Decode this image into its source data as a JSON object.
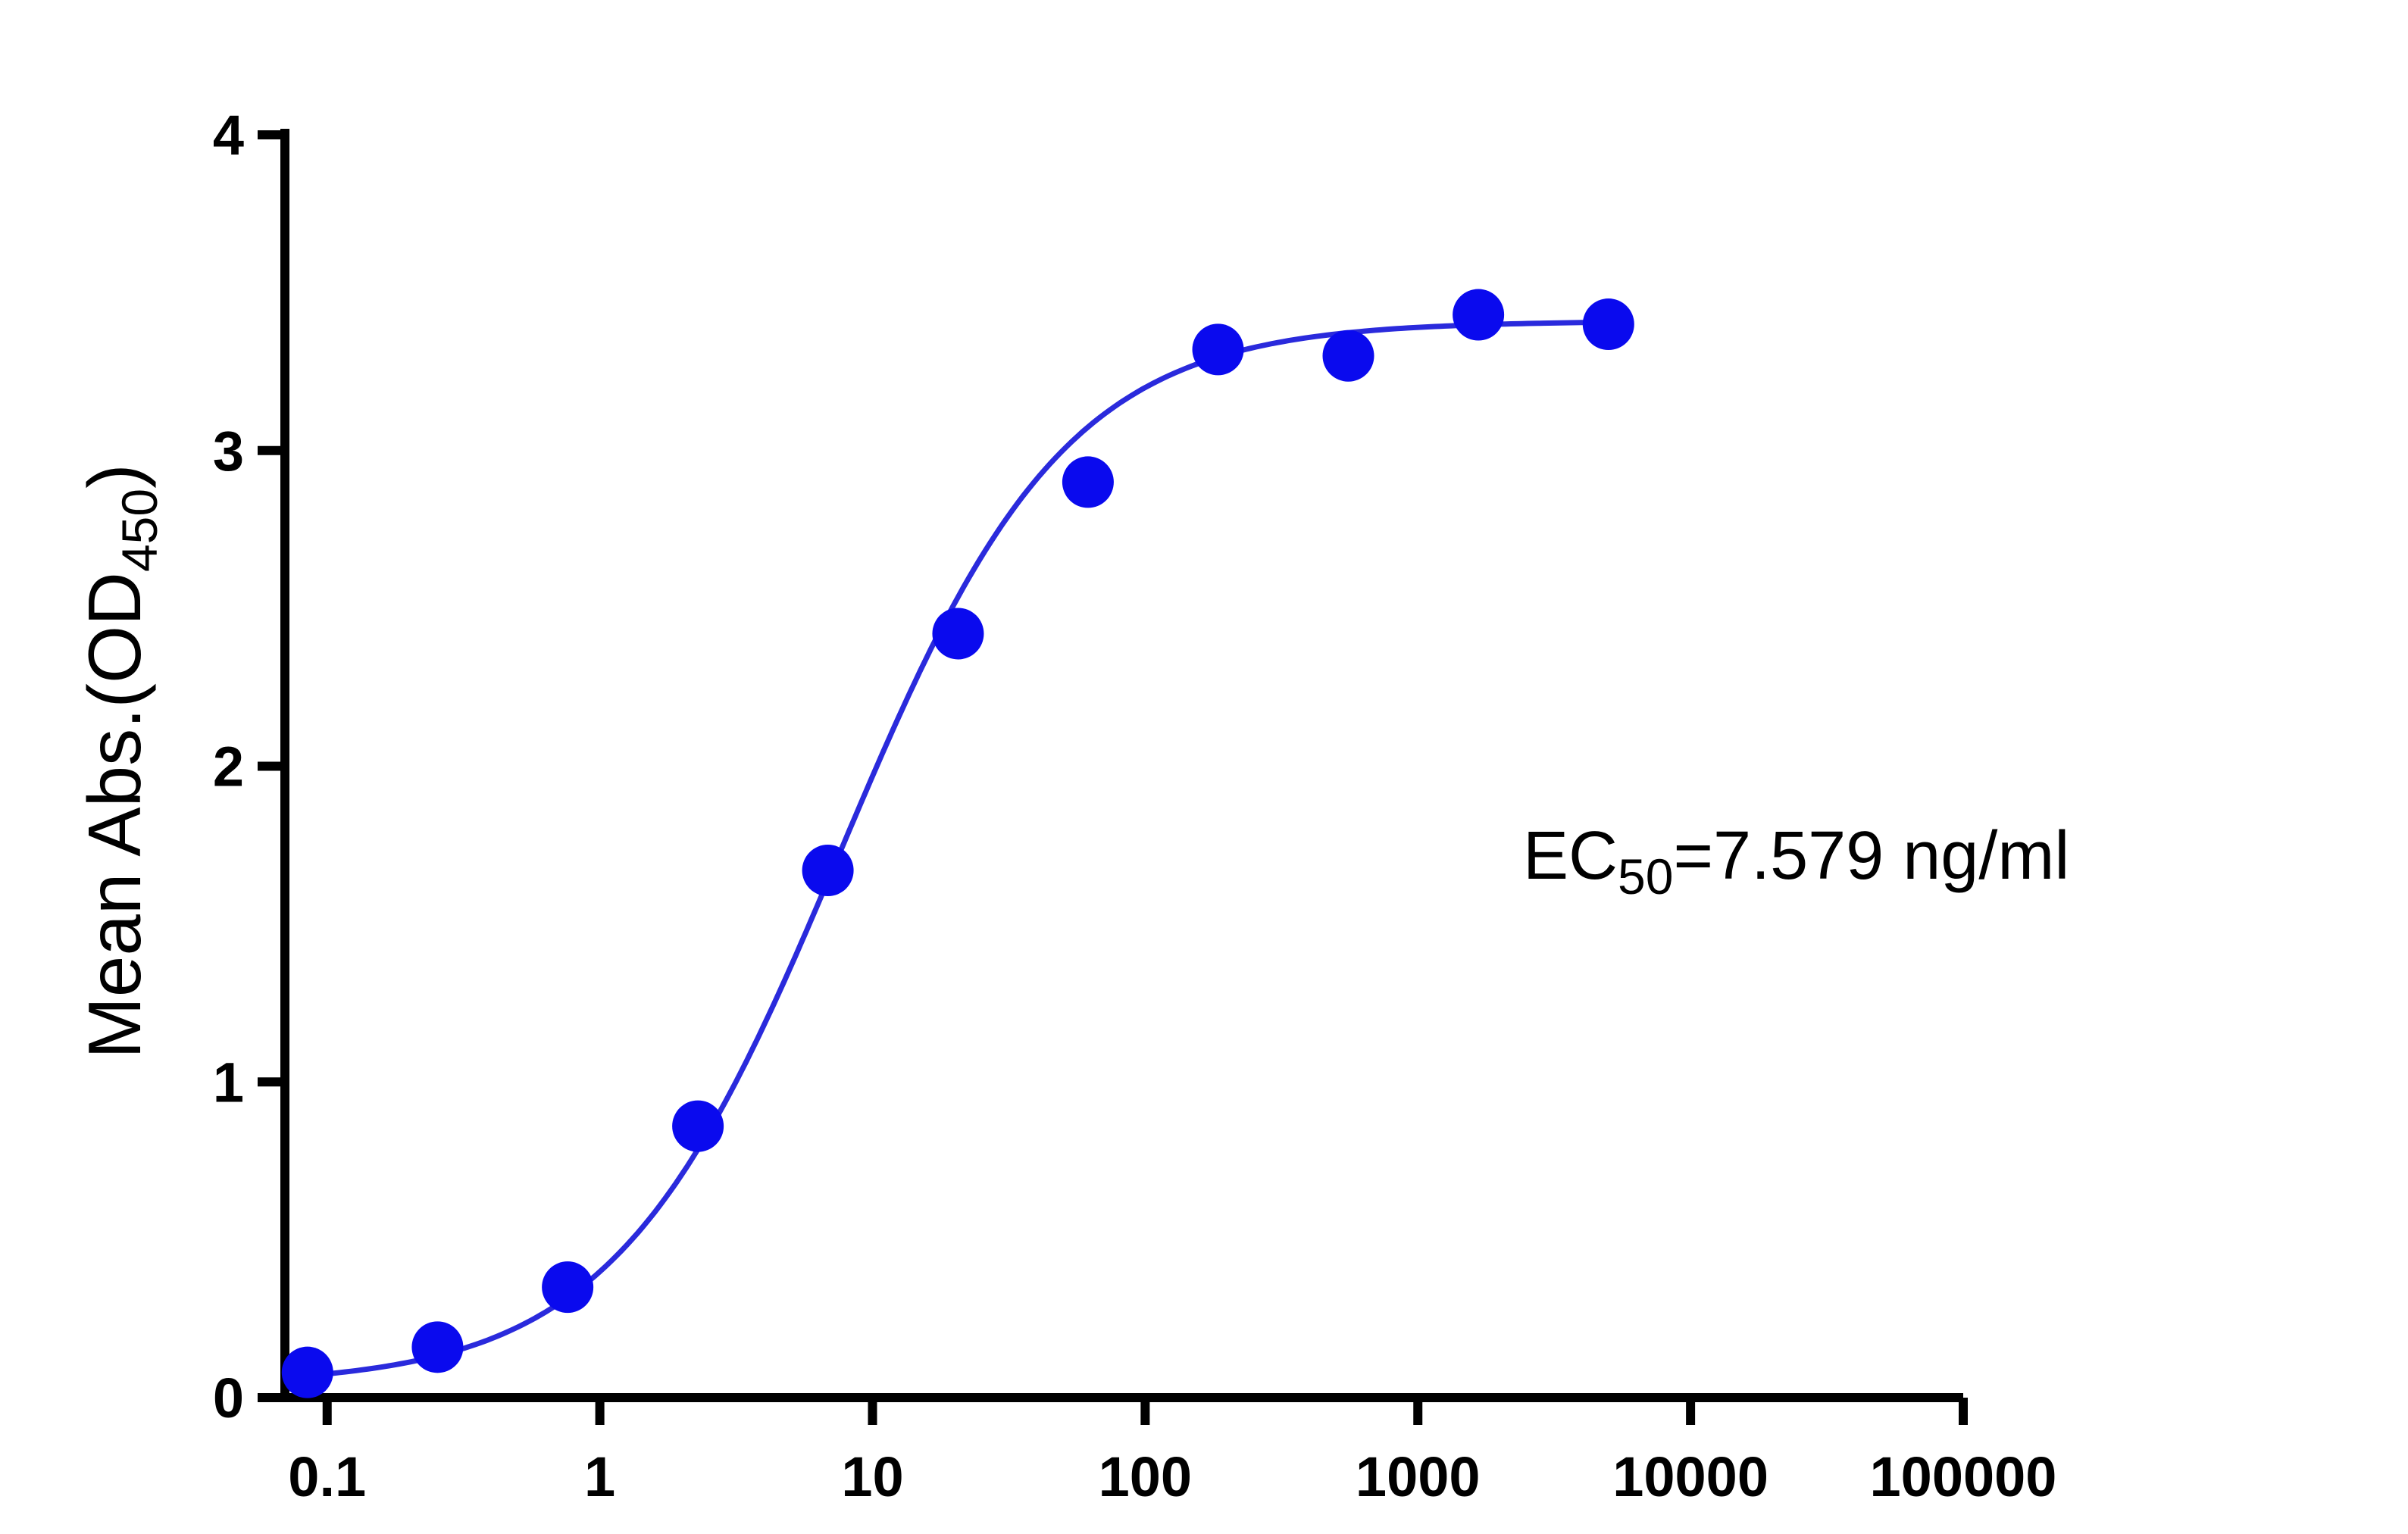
{
  "chart_data": {
    "type": "scatter",
    "title": "",
    "xlabel": "",
    "ylabel": {
      "main": "Mean Abs.(OD",
      "subscript": "450",
      "suffix": ")"
    },
    "x_scale": "log",
    "xlim": [
      0.07,
      100000
    ],
    "ylim": [
      0,
      4
    ],
    "x_ticks": [
      0.1,
      1,
      10,
      100,
      1000,
      10000,
      100000
    ],
    "x_tick_labels": [
      "0.1",
      "1",
      "10",
      "100",
      "1000",
      "10000",
      "100000"
    ],
    "y_ticks": [
      0,
      1,
      2,
      3,
      4
    ],
    "y_tick_labels": [
      "0",
      "1",
      "2",
      "3",
      "4"
    ],
    "grid": false,
    "legend": "none",
    "series": [
      {
        "marker": "circle",
        "color": "#0a0aee",
        "x": [
          0.0847,
          0.254,
          0.762,
          2.29,
          6.86,
          20.6,
          61.7,
          185,
          556,
          1667,
          5000
        ],
        "y": [
          0.08,
          0.16,
          0.35,
          0.86,
          1.67,
          2.42,
          2.9,
          3.32,
          3.3,
          3.43,
          3.4
        ]
      }
    ],
    "fit_curve": {
      "model": "4PL",
      "color": "#2a2adc",
      "bottom": 0.04,
      "top": 3.41,
      "ec50": 7.579,
      "hill": 1.05
    },
    "annotation": {
      "prefix": "EC",
      "subscript": "50",
      "suffix": "=7.579 ng/ml"
    }
  }
}
